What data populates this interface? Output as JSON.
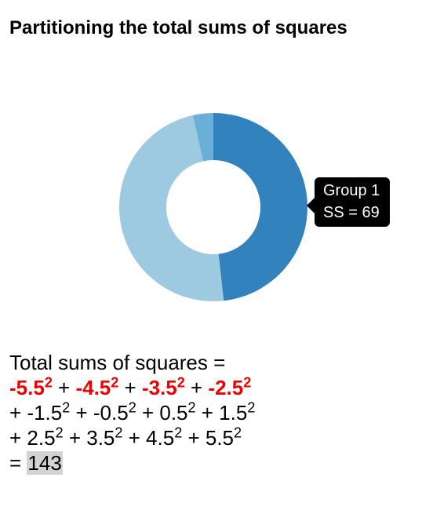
{
  "title": "Partitioning the total sums of squares",
  "tooltip": {
    "line1": "Group 1",
    "line2": "SS = 69"
  },
  "formula": {
    "prefix": "Total sums of squares =",
    "result_prefix": "= ",
    "result": "143",
    "lines": [
      [
        {
          "base": "-5.5",
          "exp": "2",
          "hl": true
        },
        {
          "base": "-4.5",
          "exp": "2",
          "hl": true
        },
        {
          "base": "-3.5",
          "exp": "2",
          "hl": true
        },
        {
          "base": "-2.5",
          "exp": "2",
          "hl": true
        }
      ],
      [
        {
          "base": "-1.5",
          "exp": "2",
          "hl": false
        },
        {
          "base": "-0.5",
          "exp": "2",
          "hl": false
        },
        {
          "base": "0.5",
          "exp": "2",
          "hl": false
        },
        {
          "base": "1.5",
          "exp": "2",
          "hl": false
        }
      ],
      [
        {
          "base": "2.5",
          "exp": "2",
          "hl": false
        },
        {
          "base": "3.5",
          "exp": "2",
          "hl": false
        },
        {
          "base": "4.5",
          "exp": "2",
          "hl": false
        },
        {
          "base": "5.5",
          "exp": "2",
          "hl": false
        }
      ]
    ]
  },
  "chart_data": {
    "type": "pie",
    "title": "Partitioning the total sums of squares",
    "values": [
      69,
      69,
      5
    ],
    "colors": [
      "#3182bd",
      "#9ecae1",
      "#6baed6"
    ],
    "highlighted_index": 0,
    "donut": true
  }
}
